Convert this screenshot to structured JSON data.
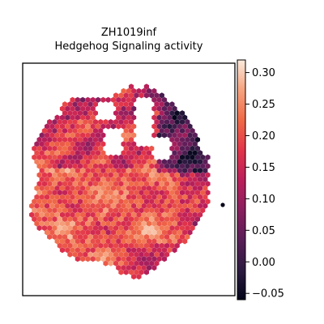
{
  "chart_data": {
    "type": "scatter",
    "marker": "hexagon",
    "title_lines": [
      "ZH1019inf",
      "Hedgehog Signaling activity"
    ],
    "xlabel": "",
    "ylabel": "",
    "axes_ticks": "none",
    "grid": false,
    "colormap": "rocket",
    "colorbar": {
      "range": [
        -0.06,
        0.32
      ],
      "ticks": [
        -0.05,
        0.0,
        0.05,
        0.1,
        0.15,
        0.2,
        0.25,
        0.3
      ],
      "tick_labels": [
        "−0.05",
        "0.00",
        "0.05",
        "0.10",
        "0.15",
        "0.20",
        "0.25",
        "0.30"
      ]
    },
    "colors": {
      "axes": "#000000",
      "background": "#ffffff"
    }
  }
}
